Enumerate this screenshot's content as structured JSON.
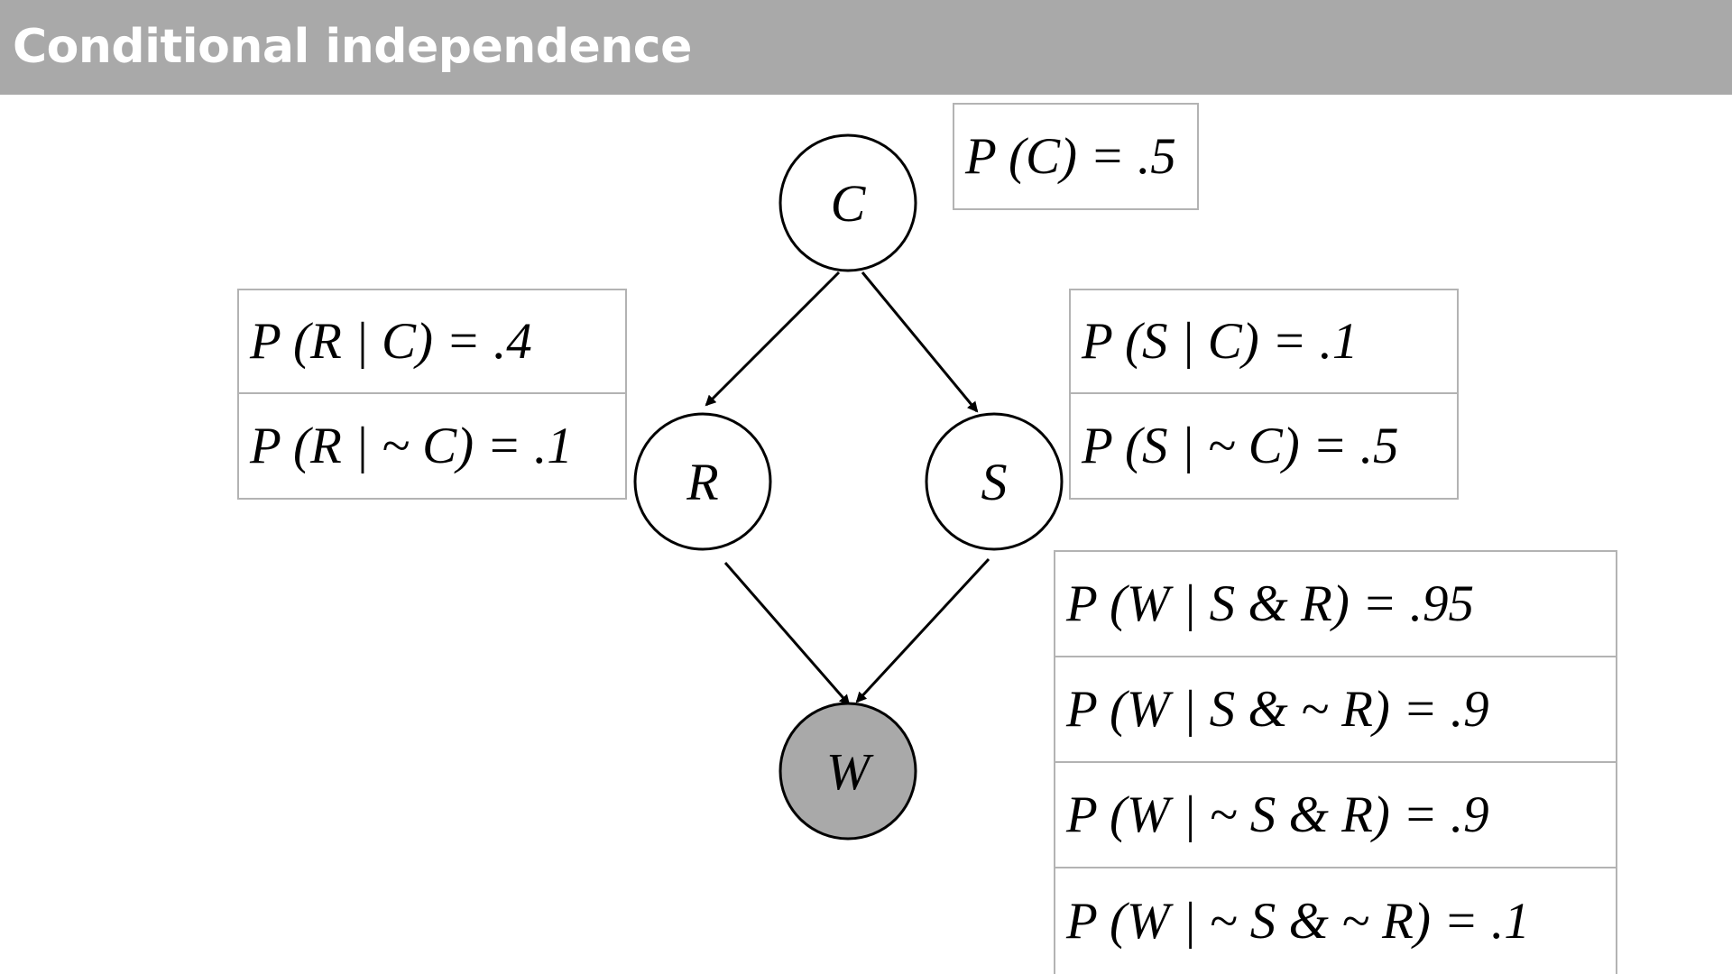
{
  "title": "Conditional independence",
  "nodes": {
    "C": {
      "label": "C",
      "fill": "#ffffff"
    },
    "R": {
      "label": "R",
      "fill": "#ffffff"
    },
    "S": {
      "label": "S",
      "fill": "#ffffff"
    },
    "W": {
      "label": "W",
      "fill": "#a9a9a9"
    }
  },
  "edges": [
    {
      "from": "C",
      "to": "R"
    },
    {
      "from": "C",
      "to": "S"
    },
    {
      "from": "R",
      "to": "W"
    },
    {
      "from": "S",
      "to": "W"
    }
  ],
  "tables": {
    "c": [
      "P (C) = .5"
    ],
    "r": [
      "P (R | C) = .4",
      "P (R | ~ C) = .1"
    ],
    "s": [
      "P (S | C) = .1",
      "P (S | ~ C) = .5"
    ],
    "w": [
      "P (W | S & R) = .95",
      "P (W | S & ~ R) = .9",
      "P (W | ~ S & R) = .9",
      "P (W | ~ S & ~ R) = .1"
    ]
  },
  "colors": {
    "title_bar": "#a9a9a9",
    "table_border": "#b3b3b3",
    "observed_node": "#a9a9a9"
  }
}
